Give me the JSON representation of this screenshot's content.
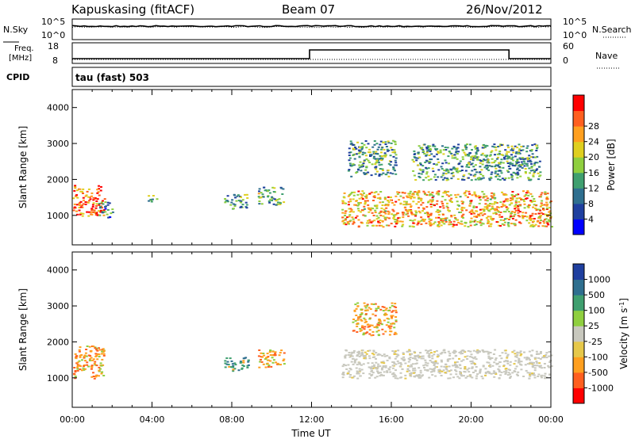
{
  "header": {
    "station": "Kapuskasing (fitACF)",
    "beam": "Beam 07",
    "date": "26/Nov/2012"
  },
  "top_strip": {
    "left_label": "N.Sky",
    "right_label": "N.Search",
    "left_ticks": [
      "10^5",
      "10^0"
    ],
    "right_ticks": [
      "10^5",
      "10^0"
    ]
  },
  "freq_strip": {
    "left_label_1": "Freq.",
    "left_label_2": "[MHz]",
    "right_label": "Nave",
    "left_ticks": [
      "18",
      "8"
    ],
    "right_ticks": [
      "60",
      "0"
    ]
  },
  "cpid": {
    "label": "CPID",
    "value": "tau (fast) 503"
  },
  "colors": {
    "power_scale": [
      "#0000ff",
      "#1f3f9f",
      "#2f6f8f",
      "#3f9f6f",
      "#8fcf3f",
      "#dfcf1f",
      "#ff9f1f",
      "#ff5f1f",
      "#ff0000"
    ],
    "velocity_scale": [
      "#ff0000",
      "#ff5f1f",
      "#ff9f1f",
      "#e6c84a",
      "#c8c8be",
      "#8fcf3f",
      "#3f9f6f",
      "#2f6f8f",
      "#1f3f9f"
    ]
  },
  "chart_data": [
    {
      "type": "heatmap",
      "panel": "power",
      "ylabel": "Slant Range [km]",
      "xlim": [
        "00:00",
        "00:00"
      ],
      "ylim": [
        180,
        4500
      ],
      "yticks": [
        "1000",
        "2000",
        "3000",
        "4000"
      ],
      "colorbar": {
        "label": "Power [dB]",
        "ticks": [
          "4",
          "8",
          "12",
          "16",
          "20",
          "24",
          "28"
        ],
        "range": [
          0,
          32
        ]
      },
      "echo_regions": [
        {
          "t_start": 0.0,
          "t_end": 1.6,
          "r_min": 1000,
          "r_max": 1850,
          "level": 26
        },
        {
          "t_start": 1.3,
          "t_end": 2.0,
          "r_min": 950,
          "r_max": 1400,
          "level": 10
        },
        {
          "t_start": 3.7,
          "t_end": 4.2,
          "r_min": 1400,
          "r_max": 1600,
          "level": 14
        },
        {
          "t_start": 7.6,
          "t_end": 8.8,
          "r_min": 1200,
          "r_max": 1600,
          "level": 12
        },
        {
          "t_start": 9.3,
          "t_end": 10.6,
          "r_min": 1300,
          "r_max": 1800,
          "level": 14
        },
        {
          "t_start": 13.5,
          "t_end": 24.0,
          "r_min": 700,
          "r_max": 1700,
          "level": 22
        },
        {
          "t_start": 13.8,
          "t_end": 16.2,
          "r_min": 2100,
          "r_max": 3100,
          "level": 12
        },
        {
          "t_start": 17.0,
          "t_end": 23.5,
          "r_min": 2000,
          "r_max": 3000,
          "level": 12
        }
      ]
    },
    {
      "type": "heatmap",
      "panel": "velocity",
      "ylabel": "Slant Range [km]",
      "xlabel": "Time UT",
      "xticks": [
        "00:00",
        "04:00",
        "08:00",
        "12:00",
        "16:00",
        "20:00",
        "00:00"
      ],
      "ylim": [
        180,
        4500
      ],
      "yticks": [
        "1000",
        "2000",
        "3000",
        "4000"
      ],
      "colorbar": {
        "label": "Velocity [m s",
        "label_sup": "-1",
        "label_end": "]",
        "ticks": [
          "-1000",
          "-500",
          "-100",
          "-25",
          "25",
          "100",
          "500",
          "1000"
        ]
      },
      "echo_regions": [
        {
          "t_start": 0.0,
          "t_end": 1.6,
          "r_min": 1000,
          "r_max": 1900,
          "level": -100
        },
        {
          "t_start": 7.6,
          "t_end": 8.8,
          "r_min": 1200,
          "r_max": 1600,
          "level": 500
        },
        {
          "t_start": 9.3,
          "t_end": 10.6,
          "r_min": 1300,
          "r_max": 1800,
          "level": -100
        },
        {
          "t_start": 13.5,
          "t_end": 24.0,
          "r_min": 1000,
          "r_max": 1800,
          "level": 0
        },
        {
          "t_start": 14.0,
          "t_end": 16.2,
          "r_min": 2200,
          "r_max": 3100,
          "level": -100
        }
      ]
    }
  ]
}
